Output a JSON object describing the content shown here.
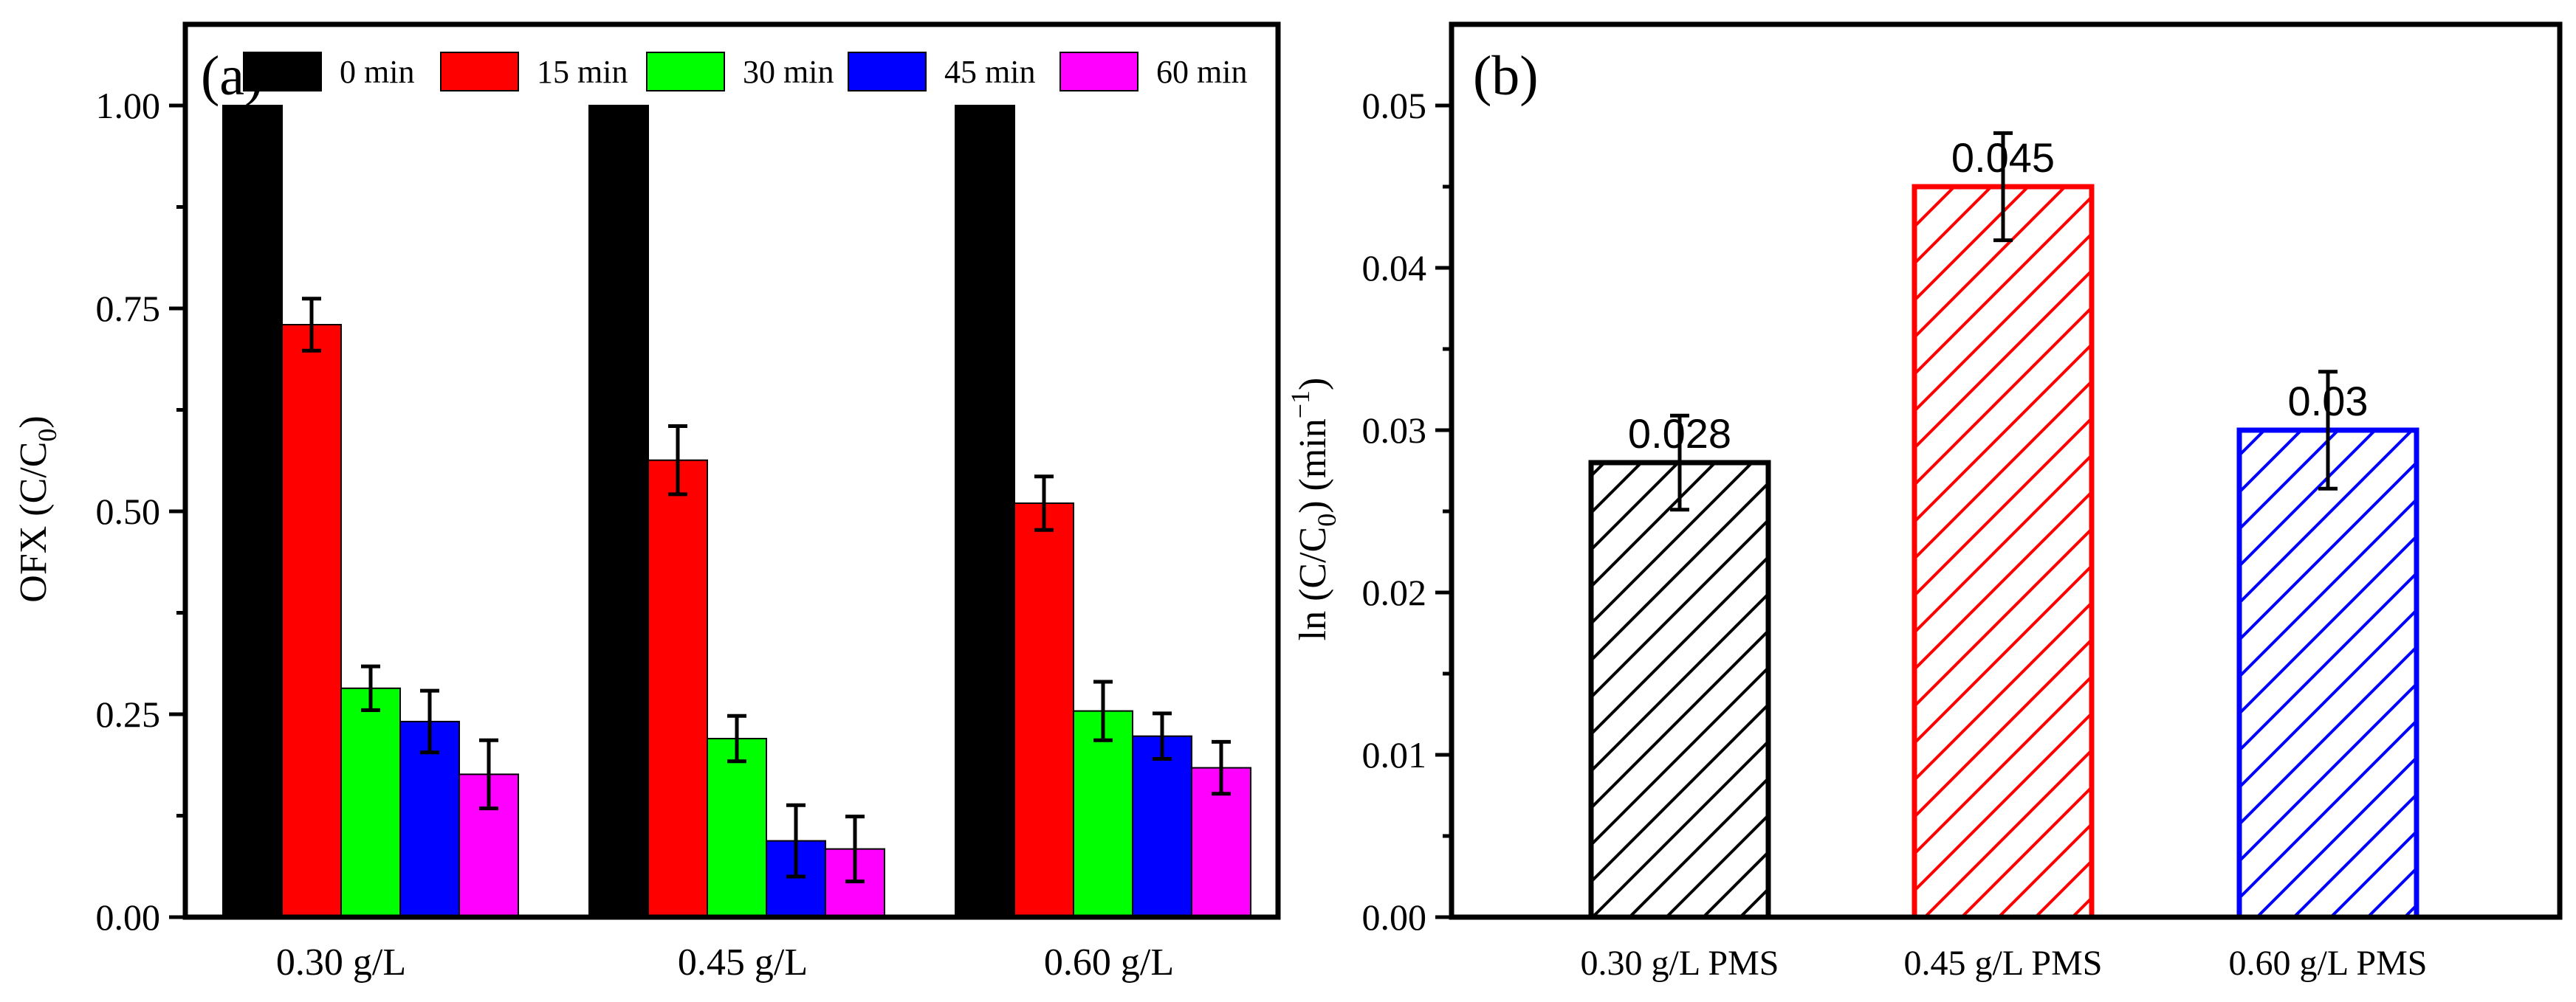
{
  "chart_data": [
    {
      "panel_label": "(a)",
      "type": "bar",
      "categories": [
        "0.30 g/L",
        "0.45 g/L",
        "0.60 g/L"
      ],
      "series": [
        {
          "name": "0 min",
          "color": "#000000",
          "values": [
            1.0,
            1.0,
            1.0
          ],
          "errors": [
            0,
            0,
            0
          ]
        },
        {
          "name": "15 min",
          "color": "#ff0000",
          "values": [
            0.73,
            0.563,
            0.51
          ],
          "errors": [
            0.032,
            0.042,
            0.033
          ]
        },
        {
          "name": "30 min",
          "color": "#00ff00",
          "values": [
            0.282,
            0.22,
            0.254
          ],
          "errors": [
            0.027,
            0.028,
            0.036
          ]
        },
        {
          "name": "45 min",
          "color": "#0000ff",
          "values": [
            0.241,
            0.094,
            0.223
          ],
          "errors": [
            0.038,
            0.044,
            0.028
          ]
        },
        {
          "name": "60 min",
          "color": "#ff00ff",
          "values": [
            0.176,
            0.084,
            0.184
          ],
          "errors": [
            0.042,
            0.04,
            0.032
          ]
        }
      ],
      "ylabel_main": "OFX (C/C",
      "ylabel_sub": "0",
      "ylabel_tail": ")",
      "ylim": [
        0,
        1.1
      ],
      "yticks": [
        0.0,
        0.25,
        0.5,
        0.75,
        1.0
      ],
      "ytick_labels": [
        "0.00",
        "0.25",
        "0.50",
        "0.75",
        "1.00"
      ],
      "legend_position": "top"
    },
    {
      "panel_label": "(b)",
      "type": "bar",
      "categories": [
        "0.30 g/L PMS",
        "0.45 g/L PMS",
        "0.60 g/L  PMS"
      ],
      "values": [
        0.028,
        0.045,
        0.03
      ],
      "value_labels": [
        "0.028",
        "0.045",
        "0.03"
      ],
      "errors": [
        0.0029,
        0.0033,
        0.0036
      ],
      "colors": [
        "#000000",
        "#ff0000",
        "#0000ff"
      ],
      "fill": "hatched",
      "ylabel_main": "ln (C/C",
      "ylabel_sub": "0",
      "ylabel_mid": ") (min",
      "ylabel_sup": "−1",
      "ylabel_tail": ")",
      "ylim": [
        0,
        0.055
      ],
      "yticks": [
        0.0,
        0.01,
        0.02,
        0.03,
        0.04,
        0.05
      ],
      "ytick_labels": [
        "0.00",
        "0.01",
        "0.02",
        "0.03",
        "0.04",
        "0.05"
      ]
    }
  ]
}
